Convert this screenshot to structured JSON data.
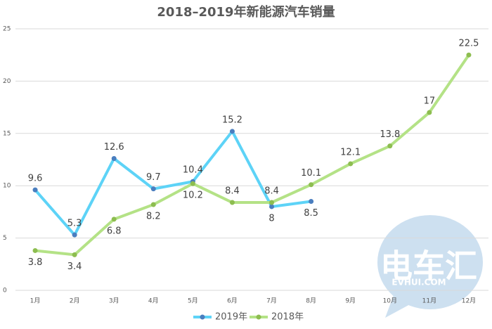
{
  "chart_data": {
    "type": "line",
    "title": "2018–2019年新能源汽车销量",
    "categories": [
      "1月",
      "2月",
      "3月",
      "4月",
      "5月",
      "6月",
      "7月",
      "8月",
      "9月",
      "10月",
      "11月",
      "12月"
    ],
    "series": [
      {
        "name": "2019年",
        "color": "#5dd3f7",
        "marker_color": "#4a7ebf",
        "values": [
          9.6,
          5.3,
          12.6,
          9.7,
          10.4,
          15.2,
          8,
          8.5,
          null,
          null,
          null,
          null
        ]
      },
      {
        "name": "2018年",
        "color": "#b4e286",
        "marker_color": "#8dbd50",
        "values": [
          3.8,
          3.4,
          6.8,
          8.2,
          10.2,
          8.4,
          8.4,
          10.1,
          12.1,
          13.8,
          17,
          22.5
        ]
      }
    ],
    "ylim": [
      0,
      25
    ],
    "yticks": [
      0,
      5,
      10,
      15,
      20,
      25
    ],
    "grid": true,
    "legend": "bottom",
    "watermark": {
      "title": "电车汇",
      "subtitle": "EVHUI.COM"
    }
  }
}
